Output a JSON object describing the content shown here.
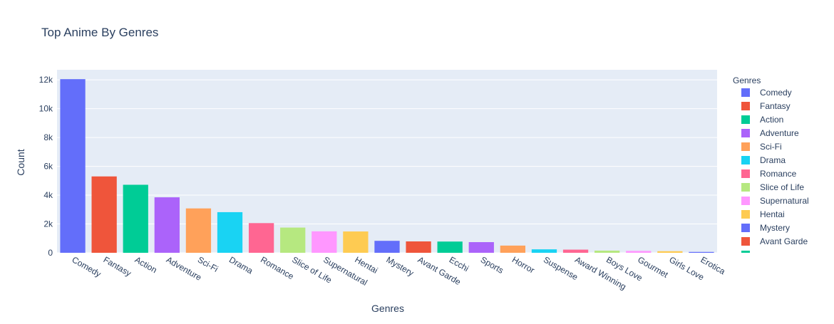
{
  "chart_data": {
    "type": "bar",
    "title": "Top Anime By Genres",
    "xlabel": "Genres",
    "ylabel": "Count",
    "ylim": [
      0,
      12000
    ],
    "yticks": [
      0,
      2000,
      4000,
      6000,
      8000,
      10000,
      12000
    ],
    "ytick_labels": [
      "0",
      "2k",
      "4k",
      "6k",
      "8k",
      "10k",
      "12k"
    ],
    "categories": [
      "Comedy",
      "Fantasy",
      "Action",
      "Adventure",
      "Sci-Fi",
      "Drama",
      "Romance",
      "Slice of Life",
      "Supernatural",
      "Hentai",
      "Mystery",
      "Avant Garde",
      "Ecchi",
      "Sports",
      "Horror",
      "Suspense",
      "Award Winning",
      "Boys Love",
      "Gourmet",
      "Girls Love",
      "Erotica"
    ],
    "values": [
      12050,
      5300,
      4720,
      3850,
      3080,
      2820,
      2060,
      1750,
      1490,
      1480,
      830,
      790,
      780,
      740,
      500,
      240,
      220,
      150,
      130,
      110,
      60
    ],
    "colors": [
      "#636efa",
      "#EF553B",
      "#00cc96",
      "#ab63fa",
      "#FFA15A",
      "#19d3f3",
      "#FF6692",
      "#B6E880",
      "#FF97FF",
      "#FECB52",
      "#636efa",
      "#EF553B",
      "#00cc96",
      "#ab63fa",
      "#FFA15A",
      "#19d3f3",
      "#FF6692",
      "#B6E880",
      "#FF97FF",
      "#FECB52",
      "#636efa"
    ],
    "grid": true,
    "legend": {
      "title": "Genres",
      "placement": "right",
      "visible_entries": [
        "Comedy",
        "Fantasy",
        "Action",
        "Adventure",
        "Sci-Fi",
        "Drama",
        "Romance",
        "Slice of Life",
        "Supernatural",
        "Hentai",
        "Mystery",
        "Avant Garde"
      ]
    },
    "plot_background": "#E5ECF6",
    "text_color": "#2a3f5f"
  }
}
